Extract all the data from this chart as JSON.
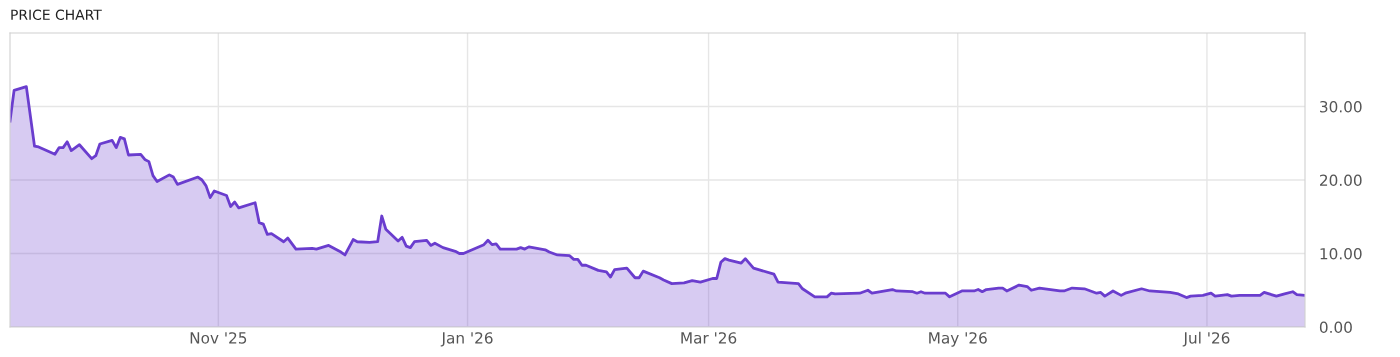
{
  "chart_data": {
    "type": "area",
    "title": "PRICE CHART",
    "x": [
      "2025-09-11",
      "2025-09-12",
      "2025-09-15",
      "2025-09-17",
      "2025-09-18",
      "2025-09-22",
      "2025-09-23",
      "2025-09-24",
      "2025-09-25",
      "2025-09-26",
      "2025-09-28",
      "2025-10-01",
      "2025-10-02",
      "2025-10-03",
      "2025-10-06",
      "2025-10-07",
      "2025-10-08",
      "2025-10-09",
      "2025-10-10",
      "2025-10-13",
      "2025-10-14",
      "2025-10-15",
      "2025-10-16",
      "2025-10-17",
      "2025-10-20",
      "2025-10-21",
      "2025-10-22",
      "2025-10-27",
      "2025-10-28",
      "2025-10-29",
      "2025-10-30",
      "2025-10-31",
      "2025-11-03",
      "2025-11-04",
      "2025-11-05",
      "2025-11-06",
      "2025-11-10",
      "2025-11-11",
      "2025-11-12",
      "2025-11-13",
      "2025-11-14",
      "2025-11-17",
      "2025-11-18",
      "2025-11-20",
      "2025-11-24",
      "2025-11-25",
      "2025-11-28",
      "2025-12-01",
      "2025-12-02",
      "2025-12-04",
      "2025-12-05",
      "2025-12-08",
      "2025-12-10",
      "2025-12-11",
      "2025-12-12",
      "2025-12-15",
      "2025-12-16",
      "2025-12-17",
      "2025-12-18",
      "2025-12-19",
      "2025-12-22",
      "2025-12-23",
      "2025-12-24",
      "2025-12-26",
      "2025-12-29",
      "2025-12-30",
      "2025-12-31",
      "2026-01-05",
      "2026-01-06",
      "2026-01-07",
      "2026-01-08",
      "2026-01-09",
      "2026-01-13",
      "2026-01-14",
      "2026-01-15",
      "2026-01-16",
      "2026-01-20",
      "2026-01-21",
      "2026-01-23",
      "2026-01-26",
      "2026-01-27",
      "2026-01-28",
      "2026-01-29",
      "2026-01-30",
      "2026-02-02",
      "2026-02-04",
      "2026-02-05",
      "2026-02-06",
      "2026-02-09",
      "2026-02-11",
      "2026-02-12",
      "2026-02-13",
      "2026-02-17",
      "2026-02-18",
      "2026-02-20",
      "2026-02-23",
      "2026-02-25",
      "2026-02-27",
      "2026-03-02",
      "2026-03-03",
      "2026-03-04",
      "2026-03-05",
      "2026-03-06",
      "2026-03-09",
      "2026-03-10",
      "2026-03-12",
      "2026-03-17",
      "2026-03-18",
      "2026-03-23",
      "2026-03-24",
      "2026-03-27",
      "2026-03-30",
      "2026-03-31",
      "2026-04-01",
      "2026-04-07",
      "2026-04-09",
      "2026-04-10",
      "2026-04-15",
      "2026-04-16",
      "2026-04-20",
      "2026-04-21",
      "2026-04-22",
      "2026-04-23",
      "2026-04-28",
      "2026-04-29",
      "2026-05-02",
      "2026-05-05",
      "2026-05-06",
      "2026-05-07",
      "2026-05-08",
      "2026-05-11",
      "2026-05-12",
      "2026-05-13",
      "2026-05-16",
      "2026-05-18",
      "2026-05-19",
      "2026-05-21",
      "2026-05-26",
      "2026-05-27",
      "2026-05-29",
      "2026-06-01",
      "2026-06-04",
      "2026-06-05",
      "2026-06-06",
      "2026-06-08",
      "2026-06-10",
      "2026-06-11",
      "2026-06-15",
      "2026-06-17",
      "2026-06-22",
      "2026-06-24",
      "2026-06-26",
      "2026-06-27",
      "2026-06-30",
      "2026-07-02",
      "2026-07-03",
      "2026-07-06",
      "2026-07-07",
      "2026-07-09",
      "2026-07-14",
      "2026-07-15",
      "2026-07-18",
      "2026-07-20",
      "2026-07-22",
      "2026-07-23",
      "2026-07-25"
    ],
    "series": [
      {
        "color": "#6a3dce",
        "values": [
          28.0,
          32.2,
          32.7,
          24.6,
          24.5,
          23.5,
          24.4,
          24.4,
          25.2,
          24.0,
          24.8,
          22.9,
          23.3,
          24.9,
          25.4,
          24.4,
          25.8,
          25.6,
          23.4,
          23.5,
          22.8,
          22.5,
          20.6,
          19.8,
          20.7,
          20.4,
          19.4,
          20.4,
          20.0,
          19.2,
          17.6,
          18.5,
          17.9,
          16.4,
          17.0,
          16.2,
          16.9,
          14.2,
          14.0,
          12.6,
          12.7,
          11.6,
          12.1,
          10.6,
          10.7,
          10.6,
          11.1,
          10.2,
          9.8,
          11.9,
          11.6,
          11.5,
          11.6,
          15.1,
          13.3,
          11.7,
          12.2,
          11.0,
          10.8,
          11.6,
          11.8,
          11.1,
          11.4,
          10.8,
          10.3,
          10.0,
          10.0,
          11.2,
          11.8,
          11.2,
          11.3,
          10.6,
          10.6,
          10.8,
          10.6,
          10.9,
          10.5,
          10.2,
          9.8,
          9.7,
          9.2,
          9.2,
          8.4,
          8.4,
          7.7,
          7.5,
          6.8,
          7.8,
          8.0,
          6.7,
          6.7,
          7.6,
          6.7,
          6.4,
          5.9,
          6.0,
          6.3,
          6.1,
          6.6,
          6.6,
          8.8,
          9.3,
          9.1,
          8.7,
          9.3,
          8.0,
          7.2,
          6.1,
          5.9,
          5.2,
          4.1,
          4.1,
          4.6,
          4.5,
          4.6,
          5.0,
          4.6,
          5.1,
          4.9,
          4.8,
          4.6,
          4.8,
          4.6,
          4.6,
          4.1,
          4.9,
          4.9,
          5.1,
          4.8,
          5.1,
          5.3,
          5.3,
          4.9,
          5.7,
          5.5,
          5.0,
          5.3,
          4.9,
          4.9,
          5.3,
          5.2,
          4.6,
          4.7,
          4.2,
          4.9,
          4.3,
          4.6,
          5.2,
          4.9,
          4.7,
          4.5,
          4.0,
          4.2,
          4.3,
          4.6,
          4.2,
          4.4,
          4.2,
          4.3,
          4.3,
          4.7,
          4.2,
          4.5,
          4.8,
          4.4,
          4.3
        ]
      }
    ],
    "xlim": [
      "2025-09-11",
      "2026-07-25"
    ],
    "xticks": [
      {
        "value": "2025-11-01",
        "label": "Nov '25"
      },
      {
        "value": "2026-01-01",
        "label": "Jan '26"
      },
      {
        "value": "2026-03-01",
        "label": "Mar '26"
      },
      {
        "value": "2026-05-01",
        "label": "May '26"
      },
      {
        "value": "2026-07-01",
        "label": "Jul '26"
      }
    ],
    "ylim": [
      0,
      40
    ],
    "yticks": [
      {
        "value": 0,
        "label": "0.00"
      },
      {
        "value": 10,
        "label": "10.00"
      },
      {
        "value": 20,
        "label": "20.00"
      },
      {
        "value": 30,
        "label": "30.00"
      }
    ],
    "grid": true,
    "legend": false
  }
}
